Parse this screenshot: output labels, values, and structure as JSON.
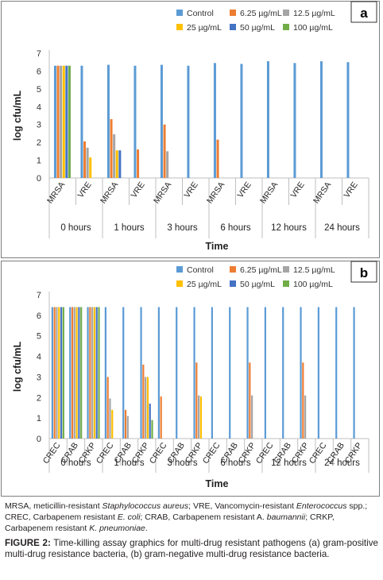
{
  "chart_data": [
    {
      "type": "bar",
      "panel": "a",
      "ylabel": "log cfu/mL",
      "xlabel": "Time",
      "ylim": [
        0,
        7
      ],
      "yticks": [
        "0",
        "1",
        "2",
        "3",
        "4",
        "5",
        "6",
        "7"
      ],
      "grid": false,
      "legend_position": "top-right",
      "groups": [
        "0 hours",
        "1 hours",
        "3 hours",
        "6 hours",
        "12 hours",
        "24 hours"
      ],
      "categories": [
        "MRSA",
        "VRE"
      ],
      "series": [
        {
          "name": "Control",
          "color": "#5b9bd5",
          "values": [
            [
              6.3,
              6.3
            ],
            [
              6.35,
              6.3
            ],
            [
              6.35,
              6.3
            ],
            [
              6.45,
              6.4
            ],
            [
              6.55,
              6.45
            ],
            [
              6.55,
              6.5
            ]
          ]
        },
        {
          "name": "6.25 µg/mL",
          "color": "#ed7d31",
          "values": [
            [
              6.3,
              2.05
            ],
            [
              3.3,
              1.6
            ],
            [
              3.0,
              0
            ],
            [
              2.15,
              0
            ],
            [
              0,
              0
            ],
            [
              0,
              0
            ]
          ]
        },
        {
          "name": "12.5 µg/mL",
          "color": "#a5a5a5",
          "values": [
            [
              6.3,
              1.7
            ],
            [
              2.45,
              0
            ],
            [
              1.5,
              0
            ],
            [
              0,
              0
            ],
            [
              0,
              0
            ],
            [
              0,
              0
            ]
          ]
        },
        {
          "name": "25 µg/mL",
          "color": "#ffc000",
          "values": [
            [
              6.3,
              1.15
            ],
            [
              1.55,
              0
            ],
            [
              0,
              0
            ],
            [
              0,
              0
            ],
            [
              0,
              0
            ],
            [
              0,
              0
            ]
          ]
        },
        {
          "name": "50 µg/mL",
          "color": "#4472c4",
          "values": [
            [
              6.3,
              0
            ],
            [
              1.55,
              0
            ],
            [
              0,
              0
            ],
            [
              0,
              0
            ],
            [
              0,
              0
            ],
            [
              0,
              0
            ]
          ]
        },
        {
          "name": "100 µg/mL",
          "color": "#70ad47",
          "values": [
            [
              6.3,
              0
            ],
            [
              0,
              0
            ],
            [
              0,
              0
            ],
            [
              0,
              0
            ],
            [
              0,
              0
            ],
            [
              0,
              0
            ]
          ]
        }
      ]
    },
    {
      "type": "bar",
      "panel": "b",
      "ylabel": "log cfu/mL",
      "xlabel": "Time",
      "ylim": [
        0,
        7
      ],
      "yticks": [
        "0",
        "1",
        "2",
        "3",
        "4",
        "5",
        "6",
        "7"
      ],
      "grid": false,
      "legend_position": "top-right",
      "groups": [
        "0 hours",
        "1 hours",
        "3 hours",
        "6 hours",
        "12 hours",
        "24 hours"
      ],
      "categories": [
        "CREC",
        "CRAB",
        "CRKP"
      ],
      "series": [
        {
          "name": "Control",
          "color": "#5b9bd5",
          "values": [
            [
              6.4,
              6.4,
              6.4
            ],
            [
              6.4,
              6.4,
              6.4
            ],
            [
              6.4,
              6.4,
              6.4
            ],
            [
              6.4,
              6.4,
              6.4
            ],
            [
              6.4,
              6.4,
              6.4
            ],
            [
              6.4,
              6.4,
              6.4
            ]
          ]
        },
        {
          "name": "6.25 µg/mL",
          "color": "#ed7d31",
          "values": [
            [
              6.4,
              6.4,
              6.4
            ],
            [
              3.0,
              1.4,
              3.6
            ],
            [
              2.05,
              0,
              3.7
            ],
            [
              0,
              0,
              3.7
            ],
            [
              0,
              0,
              3.7
            ],
            [
              0,
              0,
              0
            ]
          ]
        },
        {
          "name": "12.5 µg/mL",
          "color": "#a5a5a5",
          "values": [
            [
              6.4,
              6.4,
              6.4
            ],
            [
              1.95,
              1.1,
              3.0
            ],
            [
              0,
              0,
              2.1
            ],
            [
              0,
              0,
              2.1
            ],
            [
              0,
              0,
              2.1
            ],
            [
              0,
              0,
              0
            ]
          ]
        },
        {
          "name": "25 µg/mL",
          "color": "#ffc000",
          "values": [
            [
              6.4,
              6.4,
              6.4
            ],
            [
              1.4,
              0,
              3.0
            ],
            [
              0,
              0,
              2.05
            ],
            [
              0,
              0,
              0
            ],
            [
              0,
              0,
              0
            ],
            [
              0,
              0,
              0
            ]
          ]
        },
        {
          "name": "50 µg/mL",
          "color": "#4472c4",
          "values": [
            [
              6.4,
              6.4,
              6.4
            ],
            [
              0,
              0,
              1.7
            ],
            [
              0,
              0,
              0
            ],
            [
              0,
              0,
              0
            ],
            [
              0,
              0,
              0
            ],
            [
              0,
              0,
              0
            ]
          ]
        },
        {
          "name": "100 µg/mL",
          "color": "#70ad47",
          "values": [
            [
              6.4,
              6.4,
              6.4
            ],
            [
              0,
              0,
              0.9
            ],
            [
              0,
              0,
              0
            ],
            [
              0,
              0,
              0
            ],
            [
              0,
              0,
              0
            ],
            [
              0,
              0,
              0
            ]
          ]
        }
      ]
    }
  ],
  "footnote": {
    "parts": [
      {
        "t": "MRSA, meticillin-resistant ",
        "i": false
      },
      {
        "t": "Staphylococcus aureus",
        "i": true
      },
      {
        "t": "; VRE, Vancomycin-resistant ",
        "i": false
      },
      {
        "t": "Enterococcus",
        "i": true
      },
      {
        "t": " spp.; CREC, Carbapenem resistant ",
        "i": false
      },
      {
        "t": "E. coli",
        "i": true
      },
      {
        "t": "; CRAB, Carbapenem resistant A. ",
        "i": false
      },
      {
        "t": "baumannii",
        "i": true
      },
      {
        "t": "; CRKP, Carbapenem resistant ",
        "i": false
      },
      {
        "t": "K. pneumoniae",
        "i": true
      },
      {
        "t": ".",
        "i": false
      }
    ]
  },
  "figure_caption": {
    "label": "FIGURE 2:",
    "text": " Time-killing assay graphics for multi-drug resistant pathogens (a) gram-positive multi-drug resistance bacteria, (b) gram-negative multi-drug resistance bacteria."
  }
}
